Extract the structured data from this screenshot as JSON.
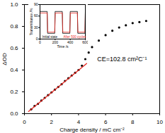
{
  "chart_data": [
    {
      "type": "scatter",
      "x_label": "Charge density / mC cm⁻²",
      "y_label": "ΔOD",
      "annotations": [
        "CE=102.8 cm²C⁻¹"
      ],
      "xlim": [
        0,
        10
      ],
      "xticks": [
        0,
        2,
        4,
        6,
        8,
        10
      ],
      "ylim": [
        0,
        1
      ],
      "yticks": [
        {
          "value": 0,
          "label": "0.0"
        },
        {
          "value": 0.2,
          "label": "0.2"
        },
        {
          "value": 0.4,
          "label": "0.4"
        },
        {
          "value": 0.6,
          "label": "0.6"
        },
        {
          "value": 0.8,
          "label": "0.8"
        },
        {
          "value": 1,
          "label": "1.0"
        }
      ],
      "series": [
        {
          "type": "scatter",
          "color": "#000000",
          "marker": "circle",
          "x": [
            0.5,
            0.75,
            1.0,
            1.25,
            1.5,
            1.75,
            2.0,
            2.25,
            2.5,
            2.75,
            3.0,
            3.25,
            3.5,
            3.75,
            4.0,
            4.25,
            4.5,
            4.75,
            5.0,
            5.5,
            6.0,
            6.5,
            7.0,
            7.5,
            8.0,
            8.5,
            9.0
          ],
          "values": [
            0.04,
            0.07,
            0.09,
            0.12,
            0.145,
            0.17,
            0.195,
            0.22,
            0.245,
            0.27,
            0.3,
            0.325,
            0.35,
            0.375,
            0.4,
            0.44,
            0.5,
            0.56,
            0.61,
            0.67,
            0.72,
            0.76,
            0.79,
            0.81,
            0.83,
            0.84,
            0.85
          ]
        },
        {
          "type": "line",
          "color": "#e8261f",
          "line_style": "solid",
          "x": [
            0.3,
            4.6
          ],
          "values": [
            0.02,
            0.46
          ]
        }
      ]
    },
    {
      "type": "line",
      "x_label": "Time /s",
      "y_label": "Transmittance /%",
      "legend": "bottom",
      "xlim": [
        0,
        600
      ],
      "xticks": [
        0,
        200,
        400,
        600
      ],
      "ylim": [
        0,
        90
      ],
      "yticks": [
        0,
        30,
        60,
        90
      ],
      "series": [
        {
          "name": "Initial state",
          "color": "#000000",
          "x": [
            0,
            95,
            100,
            195,
            200,
            295,
            300,
            395,
            400,
            495,
            500,
            595,
            600
          ],
          "values": [
            72,
            72,
            15,
            15,
            72,
            72,
            15,
            15,
            72,
            72,
            15,
            15,
            72
          ]
        },
        {
          "name": "After 500 cycles",
          "color": "#e8261f",
          "x": [
            0,
            95,
            102,
            195,
            202,
            295,
            302,
            395,
            402,
            495,
            502,
            595,
            600
          ],
          "values": [
            68,
            68,
            18,
            18,
            68,
            68,
            18,
            18,
            68,
            68,
            18,
            18,
            68
          ]
        }
      ]
    }
  ]
}
